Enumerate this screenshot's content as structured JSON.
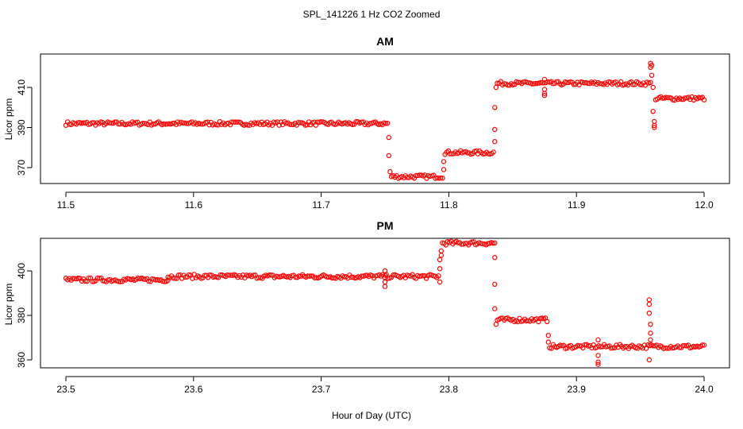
{
  "figure_title": "SPL_141226  1 Hz CO2 Zoomed",
  "shared_xlabel": "Hour of Day (UTC)",
  "colors": {
    "points": "#ff0000",
    "axes": "#000000"
  },
  "chart_data": [
    {
      "type": "scatter",
      "title": "AM",
      "xlabel": "",
      "ylabel": "Licor ppm",
      "xlim": [
        11.5,
        12.0
      ],
      "ylim": [
        363,
        424
      ],
      "xticks": [
        "11.5",
        "11.6",
        "11.7",
        "11.8",
        "11.9",
        "12.0"
      ],
      "yticks": [
        "370",
        "390",
        "410"
      ],
      "marker": "open-circle",
      "levels": [
        {
          "x": [
            11.5,
            11.752
          ],
          "y": 392
        },
        {
          "x": [
            11.755,
            11.795
          ],
          "y": 365.5
        },
        {
          "x": [
            11.797,
            11.835
          ],
          "y": 377.5
        },
        {
          "x": [
            11.838,
            11.958
          ],
          "y": 412
        },
        {
          "x": [
            11.962,
            12.0
          ],
          "y": 404.5
        }
      ],
      "outliers": [
        {
          "x": 11.753,
          "y": 385
        },
        {
          "x": 11.753,
          "y": 376
        },
        {
          "x": 11.754,
          "y": 368
        },
        {
          "x": 11.796,
          "y": 369
        },
        {
          "x": 11.796,
          "y": 373
        },
        {
          "x": 11.836,
          "y": 383
        },
        {
          "x": 11.836,
          "y": 389
        },
        {
          "x": 11.836,
          "y": 400
        },
        {
          "x": 11.837,
          "y": 410
        },
        {
          "x": 11.875,
          "y": 414
        },
        {
          "x": 11.875,
          "y": 409
        },
        {
          "x": 11.875,
          "y": 406
        },
        {
          "x": 11.875,
          "y": 407
        },
        {
          "x": 11.958,
          "y": 422
        },
        {
          "x": 11.959,
          "y": 421
        },
        {
          "x": 11.958,
          "y": 420
        },
        {
          "x": 11.959,
          "y": 416
        },
        {
          "x": 11.96,
          "y": 410
        },
        {
          "x": 11.96,
          "y": 398
        },
        {
          "x": 11.961,
          "y": 393
        },
        {
          "x": 11.961,
          "y": 391
        },
        {
          "x": 11.961,
          "y": 390
        }
      ]
    },
    {
      "type": "scatter",
      "title": "PM",
      "xlabel": "",
      "ylabel": "Licor ppm",
      "xlim": [
        23.5,
        24.0
      ],
      "ylim": [
        355,
        416
      ],
      "xticks": [
        "23.5",
        "23.6",
        "23.7",
        "23.8",
        "23.9",
        "24.0"
      ],
      "yticks": [
        "360",
        "380",
        "400"
      ],
      "marker": "open-circle",
      "levels": [
        {
          "x": [
            23.5,
            23.58
          ],
          "y": 396
        },
        {
          "x": [
            23.58,
            23.792
          ],
          "y": 397.5
        },
        {
          "x": [
            23.795,
            23.836
          ],
          "y": 412.5
        },
        {
          "x": [
            23.838,
            23.877
          ],
          "y": 378
        },
        {
          "x": [
            23.879,
            24.0
          ],
          "y": 366
        }
      ],
      "outliers": [
        {
          "x": 23.75,
          "y": 400
        },
        {
          "x": 23.75,
          "y": 398
        },
        {
          "x": 23.75,
          "y": 395
        },
        {
          "x": 23.75,
          "y": 393
        },
        {
          "x": 23.793,
          "y": 395
        },
        {
          "x": 23.793,
          "y": 401
        },
        {
          "x": 23.793,
          "y": 405
        },
        {
          "x": 23.794,
          "y": 407
        },
        {
          "x": 23.794,
          "y": 409
        },
        {
          "x": 23.836,
          "y": 406
        },
        {
          "x": 23.836,
          "y": 394
        },
        {
          "x": 23.836,
          "y": 383
        },
        {
          "x": 23.837,
          "y": 376
        },
        {
          "x": 23.878,
          "y": 371
        },
        {
          "x": 23.878,
          "y": 368
        },
        {
          "x": 23.917,
          "y": 369
        },
        {
          "x": 23.917,
          "y": 362
        },
        {
          "x": 23.917,
          "y": 359
        },
        {
          "x": 23.917,
          "y": 358
        },
        {
          "x": 23.957,
          "y": 387
        },
        {
          "x": 23.957,
          "y": 385
        },
        {
          "x": 23.957,
          "y": 381
        },
        {
          "x": 23.958,
          "y": 376
        },
        {
          "x": 23.958,
          "y": 372
        },
        {
          "x": 23.958,
          "y": 369
        },
        {
          "x": 23.957,
          "y": 360
        }
      ]
    }
  ]
}
